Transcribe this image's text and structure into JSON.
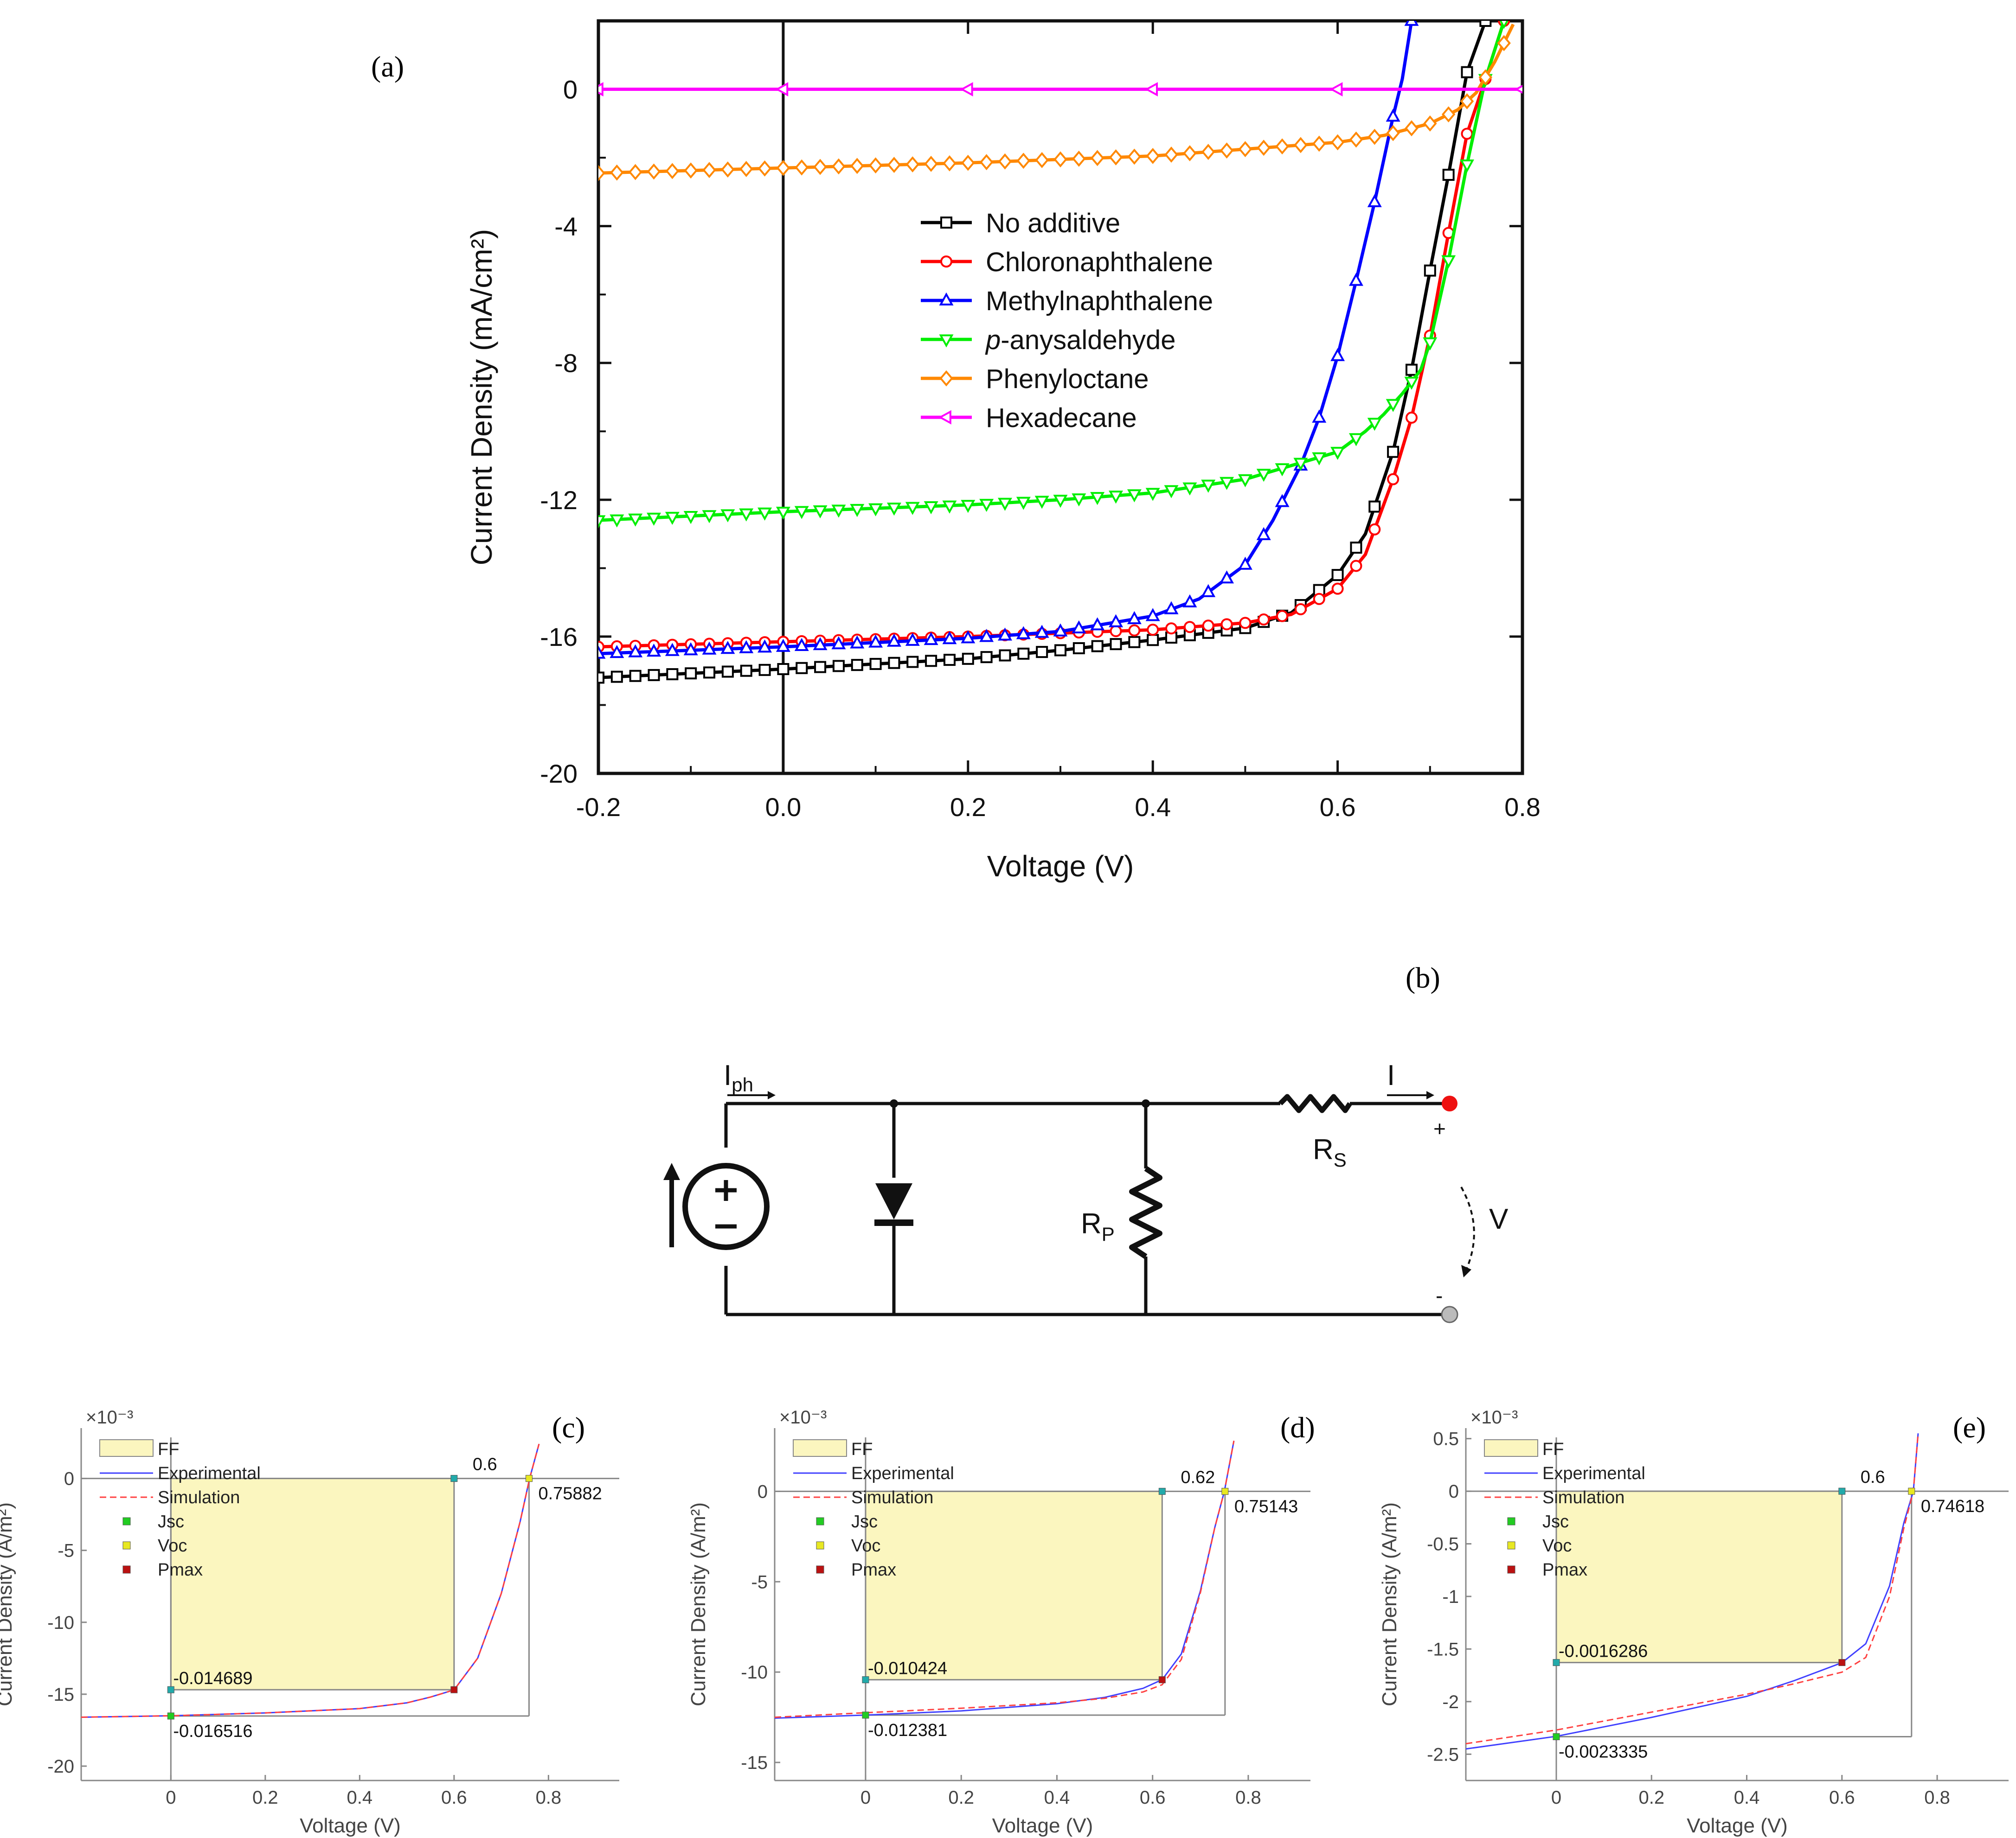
{
  "chart_data": [
    {
      "id": "a",
      "type": "line",
      "panel_label": "(a)",
      "xlabel": "Voltage (V)",
      "ylabel": "Current Density (mA/cm²)",
      "xlim": [
        -0.2,
        0.8
      ],
      "ylim": [
        -20,
        2
      ],
      "xticks": [
        -0.2,
        0.0,
        0.2,
        0.4,
        0.6,
        0.8
      ],
      "xtick_labels": [
        "-0.2",
        "0.0",
        "0.2",
        "0.4",
        "0.6",
        "0.8"
      ],
      "yticks": [
        -20,
        -16,
        -12,
        -8,
        -4,
        0
      ],
      "ytick_labels": [
        "-20",
        "-16",
        "-12",
        "-8",
        "-4",
        "0"
      ],
      "legend_position": "center",
      "series": [
        {
          "name": "No additive",
          "color": "#000000",
          "marker": "square",
          "x": [
            -0.2,
            0.0,
            0.2,
            0.3,
            0.4,
            0.5,
            0.55,
            0.6,
            0.63,
            0.66,
            0.68,
            0.7,
            0.72,
            0.74,
            0.76
          ],
          "y": [
            -17.2,
            -16.95,
            -16.65,
            -16.4,
            -16.1,
            -15.75,
            -15.3,
            -14.2,
            -13.0,
            -10.6,
            -8.2,
            -5.3,
            -2.5,
            0.5,
            2.0
          ]
        },
        {
          "name": "Chloronaphthalene",
          "color": "#ff0000",
          "marker": "circle",
          "x": [
            -0.2,
            0.0,
            0.2,
            0.3,
            0.4,
            0.5,
            0.55,
            0.6,
            0.63,
            0.66,
            0.68,
            0.7,
            0.72,
            0.74,
            0.76,
            0.78
          ],
          "y": [
            -16.3,
            -16.15,
            -16.0,
            -15.9,
            -15.8,
            -15.6,
            -15.35,
            -14.6,
            -13.6,
            -11.4,
            -9.6,
            -7.2,
            -4.2,
            -1.3,
            0.3,
            2.0
          ]
        },
        {
          "name": "Methylnaphthalene",
          "color": "#0000ff",
          "marker": "triangle-up",
          "x": [
            -0.2,
            0.0,
            0.2,
            0.3,
            0.4,
            0.45,
            0.5,
            0.53,
            0.56,
            0.58,
            0.6,
            0.62,
            0.64,
            0.66,
            0.67,
            0.68
          ],
          "y": [
            -16.5,
            -16.3,
            -16.05,
            -15.85,
            -15.4,
            -14.9,
            -13.9,
            -12.6,
            -11.0,
            -9.6,
            -7.8,
            -5.6,
            -3.3,
            -0.8,
            0.3,
            2.0
          ]
        },
        {
          "name": "p-anysaldehyde",
          "color": "#00ee00",
          "marker": "triangle-down",
          "x": [
            -0.2,
            0.0,
            0.2,
            0.3,
            0.4,
            0.5,
            0.55,
            0.6,
            0.63,
            0.65,
            0.67,
            0.69,
            0.7,
            0.72,
            0.74,
            0.76,
            0.78
          ],
          "y": [
            -12.6,
            -12.35,
            -12.15,
            -12.0,
            -11.8,
            -11.4,
            -11.0,
            -10.6,
            -10.0,
            -9.5,
            -8.9,
            -8.2,
            -7.4,
            -5.0,
            -2.2,
            0.3,
            2.0
          ]
        },
        {
          "name": "Phenyloctane",
          "color": "#ff8800",
          "marker": "diamond",
          "x": [
            -0.2,
            0.0,
            0.2,
            0.4,
            0.6,
            0.65,
            0.7,
            0.73,
            0.75,
            0.77,
            0.79
          ],
          "y": [
            -2.45,
            -2.3,
            -2.15,
            -1.95,
            -1.55,
            -1.35,
            -1.0,
            -0.6,
            -0.1,
            0.8,
            1.9
          ]
        },
        {
          "name": "Hexadecane",
          "color": "#ff00ff",
          "marker": "triangle-left",
          "x": [
            -0.2,
            0.0,
            0.2,
            0.4,
            0.6,
            0.8
          ],
          "y": [
            0,
            0,
            0,
            0,
            0,
            0
          ]
        }
      ]
    },
    {
      "id": "c",
      "type": "line",
      "panel_label": "(c)",
      "xlabel": "Voltage (V)",
      "ylabel": "Current Density (A/m²)",
      "exponent_label": "×10⁻³",
      "xlim": [
        -0.19,
        0.95
      ],
      "ylim": [
        -21,
        3.5
      ],
      "xticks": [
        0,
        0.2,
        0.4,
        0.6,
        0.8
      ],
      "xtick_labels": [
        "0",
        "0.2",
        "0.4",
        "0.6",
        "0.8"
      ],
      "yticks": [
        0,
        -5,
        -10,
        -15,
        -20
      ],
      "ytick_labels": [
        "0",
        "-5",
        "-10",
        "-15",
        "-20"
      ],
      "legend": [
        "FF",
        "Experimental",
        "Simulation",
        "Jsc",
        "Voc",
        "Pmax"
      ],
      "vmp": 0.6,
      "voc": 0.75882,
      "isc": -0.016516,
      "imp": -0.014689,
      "vmp_label": "0.6",
      "voc_label": "0.75882",
      "isc_label": "-0.016516",
      "imp_label": "-0.014689",
      "experimental": {
        "x": [
          -0.19,
          0.0,
          0.2,
          0.4,
          0.5,
          0.55,
          0.6,
          0.65,
          0.7,
          0.74,
          0.76,
          0.78
        ],
        "y": [
          -16.6,
          -16.5,
          -16.3,
          -16.0,
          -15.6,
          -15.2,
          -14.7,
          -12.5,
          -8.0,
          -3.0,
          0.0,
          2.4
        ]
      },
      "simulation": {
        "x": [
          -0.19,
          0.0,
          0.2,
          0.4,
          0.5,
          0.55,
          0.6,
          0.65,
          0.7,
          0.74,
          0.76,
          0.78
        ],
        "y": [
          -16.6,
          -16.5,
          -16.3,
          -16.0,
          -15.6,
          -15.2,
          -14.7,
          -12.5,
          -8.0,
          -3.0,
          0.0,
          2.4
        ]
      }
    },
    {
      "id": "d",
      "type": "line",
      "panel_label": "(d)",
      "xlabel": "Voltage (V)",
      "ylabel": "Current Density (A/m²)",
      "exponent_label": "×10⁻³",
      "xlim": [
        -0.19,
        0.93
      ],
      "ylim": [
        -16,
        3.5
      ],
      "xticks": [
        0,
        0.2,
        0.4,
        0.6,
        0.8
      ],
      "xtick_labels": [
        "0",
        "0.2",
        "0.4",
        "0.6",
        "0.8"
      ],
      "yticks": [
        0,
        -5,
        -10,
        -15
      ],
      "ytick_labels": [
        "0",
        "-5",
        "-10",
        "-15"
      ],
      "legend": [
        "FF",
        "Experimental",
        "Simulation",
        "Jsc",
        "Voc",
        "Pmax"
      ],
      "vmp": 0.62,
      "voc": 0.75143,
      "isc": -0.012381,
      "imp": -0.010424,
      "vmp_label": "0.62",
      "voc_label": "0.75143",
      "isc_label": "-0.012381",
      "imp_label": "-0.010424",
      "experimental": {
        "x": [
          -0.19,
          0.0,
          0.2,
          0.4,
          0.5,
          0.58,
          0.62,
          0.66,
          0.7,
          0.73,
          0.75,
          0.77
        ],
        "y": [
          -12.55,
          -12.38,
          -12.15,
          -11.75,
          -11.4,
          -10.9,
          -10.42,
          -9.0,
          -5.5,
          -2.0,
          0.0,
          2.8
        ]
      },
      "simulation": {
        "x": [
          -0.19,
          0.0,
          0.2,
          0.4,
          0.5,
          0.58,
          0.62,
          0.66,
          0.7,
          0.73,
          0.75,
          0.77
        ],
        "y": [
          -12.5,
          -12.25,
          -12.0,
          -11.7,
          -11.45,
          -11.1,
          -10.7,
          -9.3,
          -5.6,
          -2.0,
          0.0,
          2.8
        ]
      }
    },
    {
      "id": "e",
      "type": "line",
      "panel_label": "(e)",
      "xlabel": "Voltage (V)",
      "ylabel": "Current Density (A/m²)",
      "exponent_label": "×10⁻³",
      "xlim": [
        -0.19,
        0.95
      ],
      "ylim": [
        -2.75,
        0.6
      ],
      "xticks": [
        0,
        0.2,
        0.4,
        0.6,
        0.8
      ],
      "xtick_labels": [
        "0",
        "0.2",
        "0.4",
        "0.6",
        "0.8"
      ],
      "yticks": [
        0.5,
        0,
        -0.5,
        -1,
        -1.5,
        -2,
        -2.5
      ],
      "ytick_labels": [
        "0.5",
        "0",
        "-0.5",
        "-1",
        "-1.5",
        "-2",
        "-2.5"
      ],
      "legend": [
        "FF",
        "Experimental",
        "Simulation",
        "Jsc",
        "Voc",
        "Pmax"
      ],
      "vmp": 0.6,
      "voc": 0.74618,
      "isc": -0.0023335,
      "imp": -0.0016286,
      "vmp_label": "0.6",
      "voc_label": "0.74618",
      "isc_label": "-0.0023335",
      "imp_label": "-0.0016286",
      "experimental": {
        "x": [
          -0.19,
          0.0,
          0.2,
          0.4,
          0.5,
          0.6,
          0.65,
          0.7,
          0.73,
          0.75,
          0.76
        ],
        "y": [
          -2.45,
          -2.33,
          -2.15,
          -1.95,
          -1.8,
          -1.63,
          -1.45,
          -0.9,
          -0.3,
          0.0,
          0.55
        ]
      },
      "simulation": {
        "x": [
          -0.19,
          0.0,
          0.2,
          0.4,
          0.5,
          0.6,
          0.65,
          0.7,
          0.73,
          0.75,
          0.76
        ],
        "y": [
          -2.4,
          -2.27,
          -2.1,
          -1.93,
          -1.83,
          -1.72,
          -1.58,
          -1.0,
          -0.35,
          0.0,
          0.55
        ]
      }
    }
  ],
  "circuit": {
    "panel_label": "(b)",
    "iph_label": "I",
    "iph_sub": "ph",
    "i_label": "I",
    "rs_label": "R",
    "rs_sub": "S",
    "rp_label": "R",
    "rp_sub": "P",
    "v_label": "V",
    "plus_label": "+",
    "minus_label": "-"
  },
  "colors": {
    "ff_fill": "#fbf6bf",
    "experimental": "#4040ff",
    "simulation": "#ff4040",
    "jsc_marker": "#22cc22",
    "voc_marker": "#e8e822",
    "pmax_marker": "#bb1111",
    "corner_marker": "#22aaaa",
    "terminal_positive": "#ee1111",
    "terminal_negative": "#bbbbbb"
  }
}
